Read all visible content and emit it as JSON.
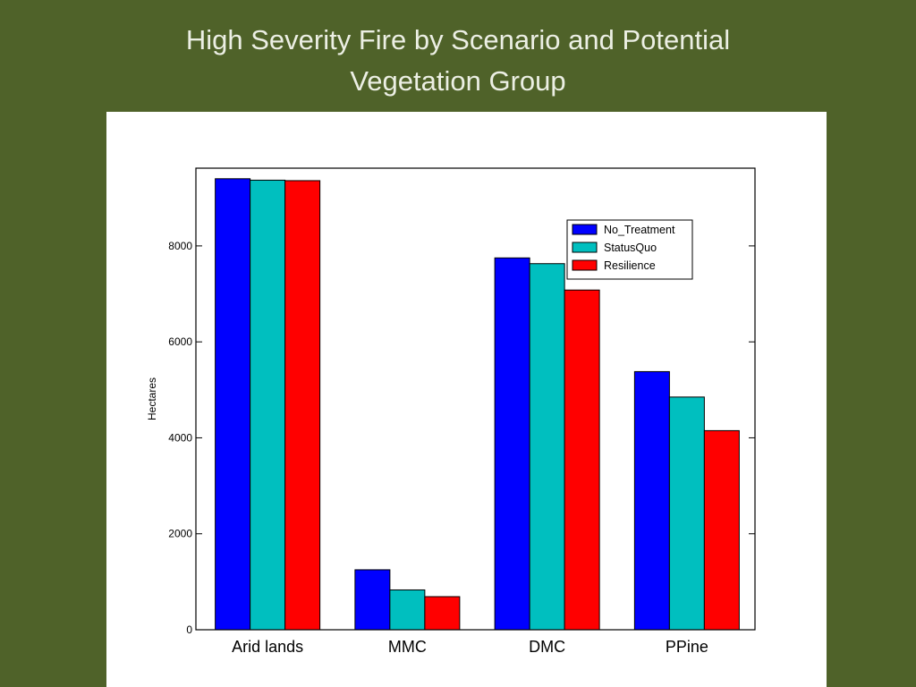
{
  "title": {
    "line1": "High Severity Fire by Scenario and Potential",
    "line2": "Vegetation Group"
  },
  "chart_data": {
    "type": "bar",
    "categories": [
      "Arid lands",
      "MMC",
      "DMC",
      "PPine"
    ],
    "series": [
      {
        "name": "No_Treatment",
        "color": "#0000ff",
        "values": [
          9400,
          1250,
          7750,
          5380
        ]
      },
      {
        "name": "StatusQuo",
        "color": "#00bfbf",
        "values": [
          9370,
          830,
          7630,
          4850
        ]
      },
      {
        "name": "Resilience",
        "color": "#ff0000",
        "values": [
          9360,
          690,
          7080,
          4150
        ]
      }
    ],
    "ylabel": "Hectares",
    "xlabel": "",
    "ylim": [
      0,
      9620
    ],
    "yticks": [
      0,
      2000,
      4000,
      6000,
      8000
    ],
    "ytick_labels": [
      "0",
      "2000",
      "4000",
      "6000",
      "8000"
    ],
    "legend_position": "upper-right",
    "grid": false
  }
}
